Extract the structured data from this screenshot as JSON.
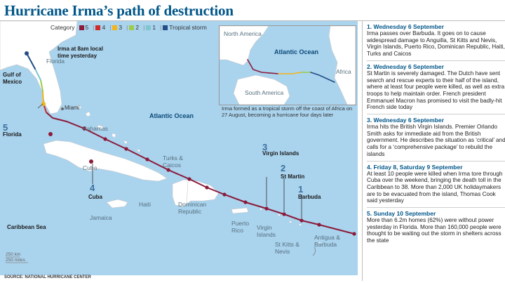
{
  "title": "Hurricane Irma’s path of destruction",
  "legend": {
    "label": "Category",
    "items": [
      {
        "text": "5",
        "color": "#8b1a3a"
      },
      {
        "text": "4",
        "color": "#cf2b2b"
      },
      {
        "text": "3",
        "color": "#f3b41b"
      },
      {
        "text": "2",
        "color": "#9ccc4a"
      },
      {
        "text": "1",
        "color": "#7ec7cf"
      },
      {
        "text": "Tropical storm",
        "color": "#234d84"
      }
    ]
  },
  "map_labels": {
    "irma_time": "Irma at 8am local time yesterday",
    "florida_state": "Florida",
    "gulf": "Gulf of Mexico",
    "miami": "Miami",
    "atlantic": "Atlantic Ocean",
    "bahamas": "Bahamas",
    "turks": "Turks & Caicos",
    "cuba_land": "Cuba",
    "haiti": "Haiti",
    "dominican": "Dominican Republic",
    "jamaica": "Jamaica",
    "puerto_rico": "Puerto Rico",
    "virgin_islands_land": "Virgin Islands",
    "st_kitts": "St Kitts & Nevis",
    "antigua": "Antigua & Barbuda",
    "caribbean": "Caribbean Sea",
    "scale_km": "250 km",
    "scale_miles": "250 miles"
  },
  "markers": [
    {
      "num": "5",
      "label": "Florida"
    },
    {
      "num": "4",
      "label": "Cuba"
    },
    {
      "num": "3",
      "label": "Virgin Islands"
    },
    {
      "num": "2",
      "label": "St Martin"
    },
    {
      "num": "1",
      "label": "Barbuda"
    }
  ],
  "inset": {
    "north_america": "North America",
    "atlantic": "Atlantic Ocean",
    "south_america": "South America",
    "africa": "Africa",
    "caption": "Irma formed as a tropical storm off the coast of Africa on 27 August, becoming a hurricane four days later"
  },
  "events": [
    {
      "title": "1. Wednesday 6 September",
      "text": "Irma passes over Barbuda. It goes on to cause widespread damage to Anguilla, St Kitts and Nevis, Virgin Islands, Puerto Rico, Dominican Republic, Haiti, Turks and Caicos"
    },
    {
      "title": "2. Wednesday 6 September",
      "text": "St Martin is severely damaged. The Dutch have sent search and rescue experts to their half of the island, where at least four people were killed, as well as extra troops to help maintain order. French president Emmanuel Macron has promised to visit the badly-hit French side today"
    },
    {
      "title": "3. Wednesday 6 September",
      "text": "Irma hits the British Virgin Islands. Premier Orlando Smith asks for immediate aid from the British government. He describes the situation as ‘critical’ and calls for a ‘comprehensive package’ to rebuild the islands"
    },
    {
      "title": "4. Friday 8, Saturday 9 September",
      "text": "At least 10 people were killed when Irma tore through Cuba over the weekend, bringing the death toll in the Caribbean to 38. More than 2,000 UK holidaymakers are to be evacuated from the island, Thomas Cook said yesterday"
    },
    {
      "title": "5. Sunday 10 September",
      "text": "More than 6.2m homes (62%) were without power yesterday in Florida. More than 160,000 people were thought to be waiting out the storm in shelters across the state"
    }
  ],
  "source": "SOURCE: NATIONAL HURRICANE CENTER"
}
